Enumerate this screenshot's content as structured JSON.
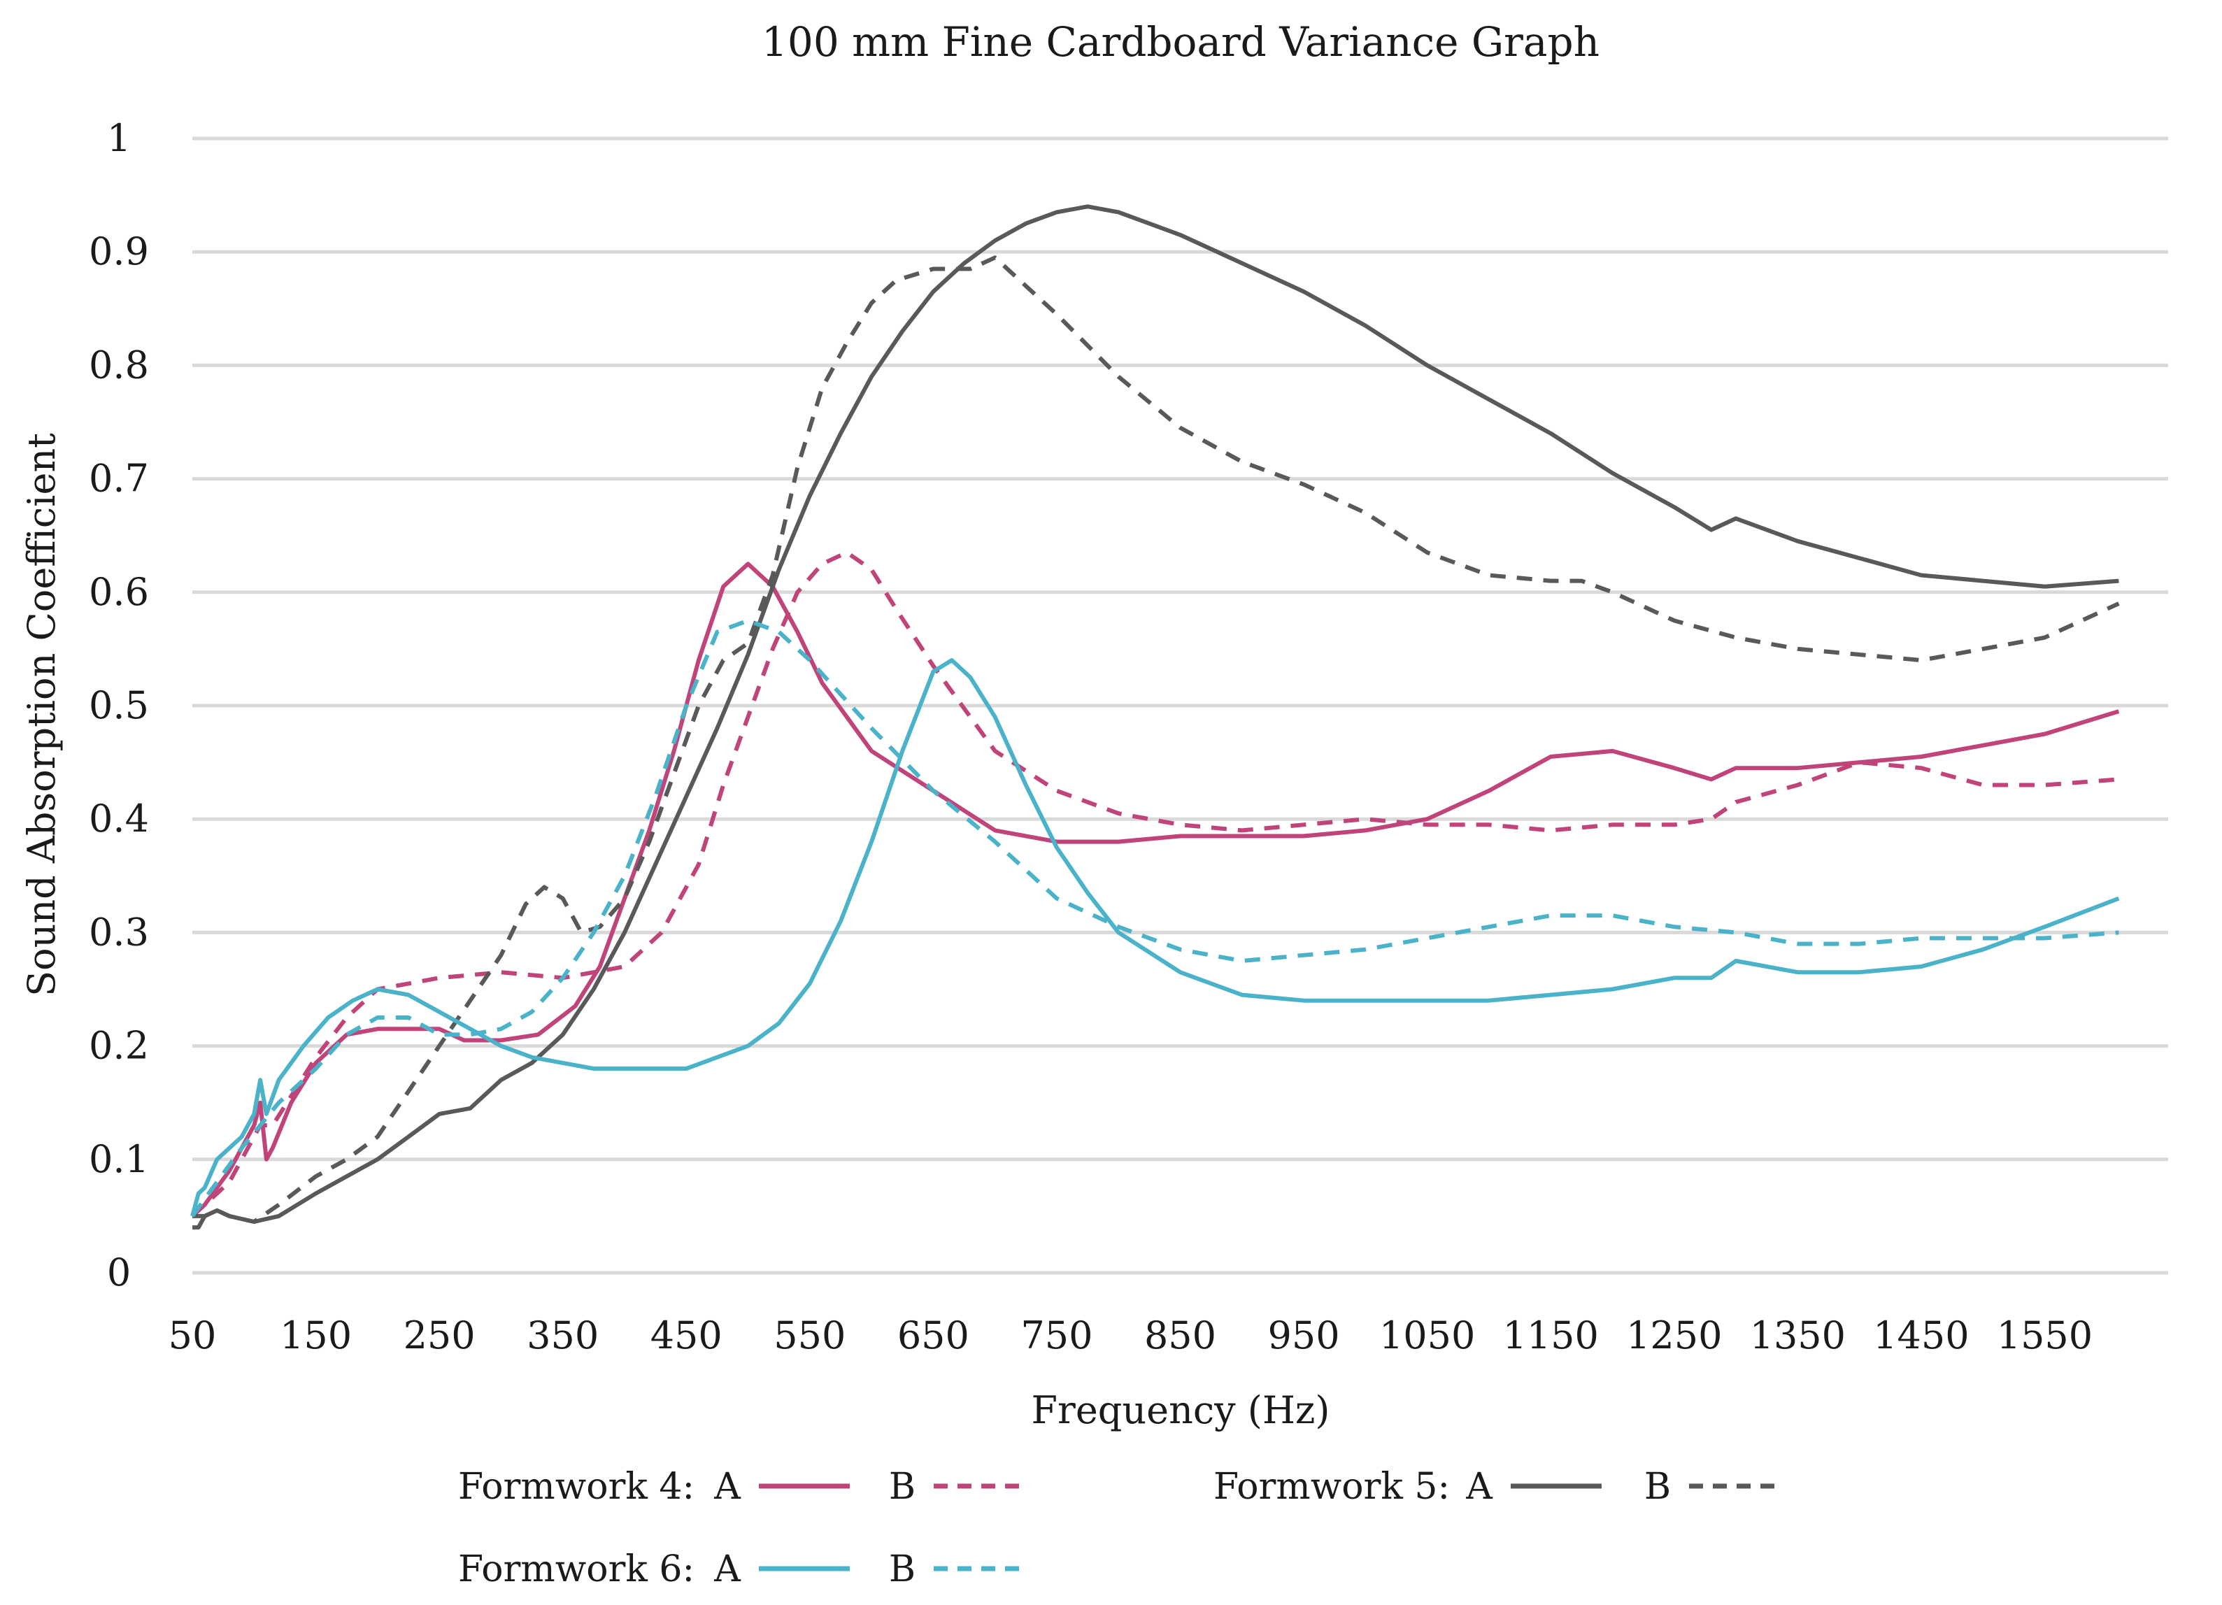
{
  "chart_data": {
    "type": "line",
    "title": "100 mm Fine Cardboard Variance Graph",
    "xlabel": "Frequency (Hz)",
    "ylabel": "Sound Absorption Coefficient",
    "xlim": [
      50,
      1650
    ],
    "ylim": [
      0,
      1
    ],
    "x_ticks": [
      "50",
      "150",
      "250",
      "350",
      "450",
      "550",
      "650",
      "750",
      "850",
      "950",
      "1050",
      "1150",
      "1250",
      "1350",
      "1450",
      "1550"
    ],
    "y_ticks": [
      "0",
      "0.1",
      "0.2",
      "0.3",
      "0.4",
      "0.5",
      "0.6",
      "0.7",
      "0.8",
      "0.9",
      "1"
    ],
    "grid": true,
    "legend_position": "bottom",
    "legend_groups": [
      {
        "label": "Formwork 4:",
        "entries": [
          {
            "name": "A",
            "series": 0
          },
          {
            "name": "B",
            "series": 1
          }
        ]
      },
      {
        "label": "Formwork 5:",
        "entries": [
          {
            "name": "A",
            "series": 2
          },
          {
            "name": "B",
            "series": 3
          }
        ]
      },
      {
        "label": "Formwork 6:",
        "entries": [
          {
            "name": "A",
            "series": 4
          },
          {
            "name": "B",
            "series": 5
          }
        ]
      }
    ],
    "series": [
      {
        "name": "Formwork 4 A",
        "color": "#c0447a",
        "dash": "solid",
        "points": [
          [
            50,
            0.05
          ],
          [
            60,
            0.06
          ],
          [
            70,
            0.075
          ],
          [
            80,
            0.09
          ],
          [
            90,
            0.11
          ],
          [
            100,
            0.13
          ],
          [
            105,
            0.15
          ],
          [
            110,
            0.1
          ],
          [
            115,
            0.11
          ],
          [
            130,
            0.15
          ],
          [
            150,
            0.185
          ],
          [
            175,
            0.21
          ],
          [
            200,
            0.215
          ],
          [
            250,
            0.215
          ],
          [
            270,
            0.205
          ],
          [
            300,
            0.205
          ],
          [
            330,
            0.21
          ],
          [
            360,
            0.235
          ],
          [
            380,
            0.27
          ],
          [
            400,
            0.33
          ],
          [
            420,
            0.39
          ],
          [
            440,
            0.46
          ],
          [
            460,
            0.54
          ],
          [
            480,
            0.605
          ],
          [
            500,
            0.625
          ],
          [
            520,
            0.605
          ],
          [
            540,
            0.565
          ],
          [
            560,
            0.52
          ],
          [
            580,
            0.49
          ],
          [
            600,
            0.46
          ],
          [
            650,
            0.425
          ],
          [
            700,
            0.39
          ],
          [
            750,
            0.38
          ],
          [
            800,
            0.38
          ],
          [
            850,
            0.385
          ],
          [
            900,
            0.385
          ],
          [
            950,
            0.385
          ],
          [
            1000,
            0.39
          ],
          [
            1050,
            0.4
          ],
          [
            1100,
            0.425
          ],
          [
            1150,
            0.455
          ],
          [
            1200,
            0.46
          ],
          [
            1250,
            0.445
          ],
          [
            1280,
            0.435
          ],
          [
            1300,
            0.445
          ],
          [
            1350,
            0.445
          ],
          [
            1400,
            0.45
          ],
          [
            1450,
            0.455
          ],
          [
            1500,
            0.465
          ],
          [
            1550,
            0.475
          ],
          [
            1610,
            0.495
          ]
        ]
      },
      {
        "name": "Formwork 4 B",
        "color": "#c0447a",
        "dash": "dashed",
        "points": [
          [
            50,
            0.05
          ],
          [
            80,
            0.08
          ],
          [
            105,
            0.13
          ],
          [
            115,
            0.13
          ],
          [
            150,
            0.19
          ],
          [
            175,
            0.225
          ],
          [
            200,
            0.25
          ],
          [
            225,
            0.255
          ],
          [
            250,
            0.26
          ],
          [
            300,
            0.265
          ],
          [
            350,
            0.26
          ],
          [
            400,
            0.27
          ],
          [
            430,
            0.3
          ],
          [
            460,
            0.36
          ],
          [
            480,
            0.43
          ],
          [
            500,
            0.49
          ],
          [
            520,
            0.55
          ],
          [
            540,
            0.6
          ],
          [
            560,
            0.625
          ],
          [
            580,
            0.635
          ],
          [
            600,
            0.62
          ],
          [
            620,
            0.585
          ],
          [
            650,
            0.535
          ],
          [
            700,
            0.46
          ],
          [
            750,
            0.425
          ],
          [
            800,
            0.405
          ],
          [
            850,
            0.395
          ],
          [
            900,
            0.39
          ],
          [
            950,
            0.395
          ],
          [
            1000,
            0.4
          ],
          [
            1050,
            0.395
          ],
          [
            1100,
            0.395
          ],
          [
            1150,
            0.39
          ],
          [
            1200,
            0.395
          ],
          [
            1250,
            0.395
          ],
          [
            1280,
            0.4
          ],
          [
            1300,
            0.415
          ],
          [
            1350,
            0.43
          ],
          [
            1400,
            0.45
          ],
          [
            1450,
            0.445
          ],
          [
            1500,
            0.43
          ],
          [
            1550,
            0.43
          ],
          [
            1610,
            0.435
          ]
        ]
      },
      {
        "name": "Formwork 5 A",
        "color": "#595959",
        "dash": "solid",
        "points": [
          [
            50,
            0.04
          ],
          [
            55,
            0.04
          ],
          [
            60,
            0.05
          ],
          [
            70,
            0.055
          ],
          [
            80,
            0.05
          ],
          [
            100,
            0.045
          ],
          [
            120,
            0.05
          ],
          [
            150,
            0.07
          ],
          [
            175,
            0.085
          ],
          [
            200,
            0.1
          ],
          [
            225,
            0.12
          ],
          [
            250,
            0.14
          ],
          [
            275,
            0.145
          ],
          [
            300,
            0.17
          ],
          [
            325,
            0.185
          ],
          [
            350,
            0.21
          ],
          [
            375,
            0.25
          ],
          [
            400,
            0.3
          ],
          [
            425,
            0.36
          ],
          [
            450,
            0.42
          ],
          [
            475,
            0.48
          ],
          [
            500,
            0.545
          ],
          [
            525,
            0.62
          ],
          [
            550,
            0.685
          ],
          [
            575,
            0.74
          ],
          [
            600,
            0.79
          ],
          [
            625,
            0.83
          ],
          [
            650,
            0.865
          ],
          [
            675,
            0.89
          ],
          [
            700,
            0.91
          ],
          [
            725,
            0.925
          ],
          [
            750,
            0.935
          ],
          [
            775,
            0.94
          ],
          [
            800,
            0.935
          ],
          [
            850,
            0.915
          ],
          [
            900,
            0.89
          ],
          [
            950,
            0.865
          ],
          [
            1000,
            0.835
          ],
          [
            1050,
            0.8
          ],
          [
            1100,
            0.77
          ],
          [
            1150,
            0.74
          ],
          [
            1200,
            0.705
          ],
          [
            1250,
            0.675
          ],
          [
            1280,
            0.655
          ],
          [
            1300,
            0.665
          ],
          [
            1350,
            0.645
          ],
          [
            1400,
            0.63
          ],
          [
            1450,
            0.615
          ],
          [
            1500,
            0.61
          ],
          [
            1550,
            0.605
          ],
          [
            1610,
            0.61
          ]
        ]
      },
      {
        "name": "Formwork 5 B",
        "color": "#595959",
        "dash": "dashed",
        "points": [
          [
            50,
            0.05
          ],
          [
            60,
            0.05
          ],
          [
            70,
            0.055
          ],
          [
            80,
            0.05
          ],
          [
            100,
            0.045
          ],
          [
            120,
            0.06
          ],
          [
            150,
            0.085
          ],
          [
            175,
            0.1
          ],
          [
            200,
            0.12
          ],
          [
            225,
            0.16
          ],
          [
            250,
            0.2
          ],
          [
            275,
            0.24
          ],
          [
            300,
            0.28
          ],
          [
            320,
            0.325
          ],
          [
            335,
            0.34
          ],
          [
            350,
            0.33
          ],
          [
            365,
            0.3
          ],
          [
            380,
            0.305
          ],
          [
            400,
            0.33
          ],
          [
            420,
            0.38
          ],
          [
            440,
            0.44
          ],
          [
            460,
            0.5
          ],
          [
            480,
            0.54
          ],
          [
            500,
            0.555
          ],
          [
            520,
            0.615
          ],
          [
            540,
            0.71
          ],
          [
            560,
            0.78
          ],
          [
            580,
            0.82
          ],
          [
            600,
            0.855
          ],
          [
            620,
            0.875
          ],
          [
            650,
            0.885
          ],
          [
            680,
            0.885
          ],
          [
            700,
            0.895
          ],
          [
            725,
            0.87
          ],
          [
            750,
            0.845
          ],
          [
            800,
            0.79
          ],
          [
            850,
            0.745
          ],
          [
            900,
            0.715
          ],
          [
            950,
            0.695
          ],
          [
            1000,
            0.67
          ],
          [
            1050,
            0.635
          ],
          [
            1100,
            0.615
          ],
          [
            1150,
            0.61
          ],
          [
            1175,
            0.61
          ],
          [
            1200,
            0.6
          ],
          [
            1250,
            0.575
          ],
          [
            1300,
            0.56
          ],
          [
            1350,
            0.55
          ],
          [
            1400,
            0.545
          ],
          [
            1450,
            0.54
          ],
          [
            1500,
            0.55
          ],
          [
            1550,
            0.56
          ],
          [
            1610,
            0.59
          ]
        ]
      },
      {
        "name": "Formwork 6 A",
        "color": "#4ab2c9",
        "dash": "solid",
        "points": [
          [
            50,
            0.05
          ],
          [
            55,
            0.07
          ],
          [
            60,
            0.075
          ],
          [
            70,
            0.1
          ],
          [
            80,
            0.11
          ],
          [
            90,
            0.12
          ],
          [
            100,
            0.14
          ],
          [
            105,
            0.17
          ],
          [
            110,
            0.14
          ],
          [
            120,
            0.17
          ],
          [
            140,
            0.2
          ],
          [
            160,
            0.225
          ],
          [
            180,
            0.24
          ],
          [
            200,
            0.25
          ],
          [
            225,
            0.245
          ],
          [
            250,
            0.23
          ],
          [
            275,
            0.215
          ],
          [
            300,
            0.2
          ],
          [
            325,
            0.19
          ],
          [
            350,
            0.185
          ],
          [
            375,
            0.18
          ],
          [
            400,
            0.18
          ],
          [
            425,
            0.18
          ],
          [
            450,
            0.18
          ],
          [
            475,
            0.19
          ],
          [
            500,
            0.2
          ],
          [
            525,
            0.22
          ],
          [
            550,
            0.255
          ],
          [
            575,
            0.31
          ],
          [
            600,
            0.38
          ],
          [
            625,
            0.46
          ],
          [
            650,
            0.53
          ],
          [
            665,
            0.54
          ],
          [
            680,
            0.525
          ],
          [
            700,
            0.49
          ],
          [
            725,
            0.43
          ],
          [
            750,
            0.375
          ],
          [
            775,
            0.335
          ],
          [
            800,
            0.3
          ],
          [
            850,
            0.265
          ],
          [
            900,
            0.245
          ],
          [
            950,
            0.24
          ],
          [
            1000,
            0.24
          ],
          [
            1050,
            0.24
          ],
          [
            1100,
            0.24
          ],
          [
            1150,
            0.245
          ],
          [
            1200,
            0.25
          ],
          [
            1250,
            0.26
          ],
          [
            1280,
            0.26
          ],
          [
            1300,
            0.275
          ],
          [
            1350,
            0.265
          ],
          [
            1400,
            0.265
          ],
          [
            1450,
            0.27
          ],
          [
            1500,
            0.285
          ],
          [
            1550,
            0.305
          ],
          [
            1610,
            0.33
          ]
        ]
      },
      {
        "name": "Formwork 6 B",
        "color": "#4ab2c9",
        "dash": "dashed",
        "points": [
          [
            50,
            0.05
          ],
          [
            70,
            0.08
          ],
          [
            90,
            0.11
          ],
          [
            105,
            0.13
          ],
          [
            120,
            0.15
          ],
          [
            150,
            0.18
          ],
          [
            175,
            0.21
          ],
          [
            200,
            0.225
          ],
          [
            225,
            0.225
          ],
          [
            250,
            0.21
          ],
          [
            275,
            0.21
          ],
          [
            300,
            0.215
          ],
          [
            325,
            0.23
          ],
          [
            350,
            0.26
          ],
          [
            375,
            0.3
          ],
          [
            400,
            0.35
          ],
          [
            425,
            0.42
          ],
          [
            450,
            0.5
          ],
          [
            475,
            0.565
          ],
          [
            500,
            0.575
          ],
          [
            525,
            0.565
          ],
          [
            550,
            0.54
          ],
          [
            575,
            0.51
          ],
          [
            600,
            0.48
          ],
          [
            650,
            0.425
          ],
          [
            700,
            0.38
          ],
          [
            750,
            0.33
          ],
          [
            800,
            0.305
          ],
          [
            850,
            0.285
          ],
          [
            900,
            0.275
          ],
          [
            950,
            0.28
          ],
          [
            1000,
            0.285
          ],
          [
            1050,
            0.295
          ],
          [
            1100,
            0.305
          ],
          [
            1150,
            0.315
          ],
          [
            1200,
            0.315
          ],
          [
            1250,
            0.305
          ],
          [
            1300,
            0.3
          ],
          [
            1350,
            0.29
          ],
          [
            1400,
            0.29
          ],
          [
            1450,
            0.295
          ],
          [
            1500,
            0.295
          ],
          [
            1550,
            0.295
          ],
          [
            1610,
            0.3
          ]
        ]
      }
    ]
  }
}
